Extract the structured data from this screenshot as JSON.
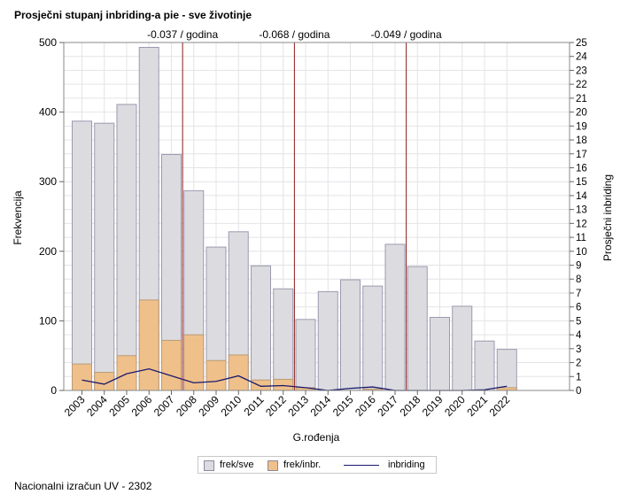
{
  "title": "Prosječni stupanj inbriding-a pie - sve životinje",
  "footer": "Nacionalni izračun UV - 2302",
  "legend": {
    "item1": "frek/sve",
    "item2": "frek/inbr.",
    "item3": "inbriding"
  },
  "chart_data": {
    "type": "bar",
    "xlabel": "G.rođenja",
    "ylabel": "Frekvencija",
    "y2label": "Prosječni inbriding",
    "categories": [
      "2003",
      "2004",
      "2005",
      "2006",
      "2007",
      "2008",
      "2009",
      "2010",
      "2011",
      "2012",
      "2013",
      "2014",
      "2015",
      "2016",
      "2017",
      "2018",
      "2019",
      "2020",
      "2021",
      "2022"
    ],
    "ylim": [
      0,
      500
    ],
    "yticks": [
      0,
      100,
      200,
      300,
      400,
      500
    ],
    "y2lim": [
      0,
      25
    ],
    "y2ticks": [
      0,
      1,
      2,
      3,
      4,
      5,
      6,
      7,
      8,
      9,
      10,
      11,
      12,
      13,
      14,
      15,
      16,
      17,
      18,
      19,
      20,
      21,
      22,
      23,
      24,
      25
    ],
    "series": [
      {
        "name": "frek/sve",
        "kind": "bar",
        "color": "#dcdce0",
        "values": [
          387,
          384,
          411,
          493,
          339,
          287,
          206,
          228,
          179,
          146,
          102,
          142,
          159,
          150,
          210,
          178,
          105,
          121,
          71,
          59
        ]
      },
      {
        "name": "frek/inbr.",
        "kind": "bar",
        "color": "#f0c08a",
        "values": [
          38,
          26,
          50,
          130,
          72,
          80,
          43,
          51,
          15,
          16,
          4,
          0,
          0,
          2,
          0,
          0,
          0,
          0,
          0,
          4
        ]
      },
      {
        "name": "inbriding",
        "kind": "line",
        "axis": "right",
        "color": "#1a1a6e",
        "values": [
          0.75,
          0.45,
          1.2,
          1.55,
          1.05,
          0.55,
          0.65,
          1.05,
          0.3,
          0.35,
          0.2,
          0.0,
          0.15,
          0.25,
          0.0,
          0.0,
          0.0,
          0.0,
          0.05,
          0.3
        ]
      }
    ],
    "annotations": [
      {
        "between": [
          "2007",
          "2008"
        ],
        "label": "-0.037 / godina"
      },
      {
        "between": [
          "2012",
          "2013"
        ],
        "label": "-0.068 / godina"
      },
      {
        "between": [
          "2017",
          "2018"
        ],
        "label": "-0.049 / godina"
      }
    ],
    "grid": true,
    "legend_position": "bottom"
  }
}
